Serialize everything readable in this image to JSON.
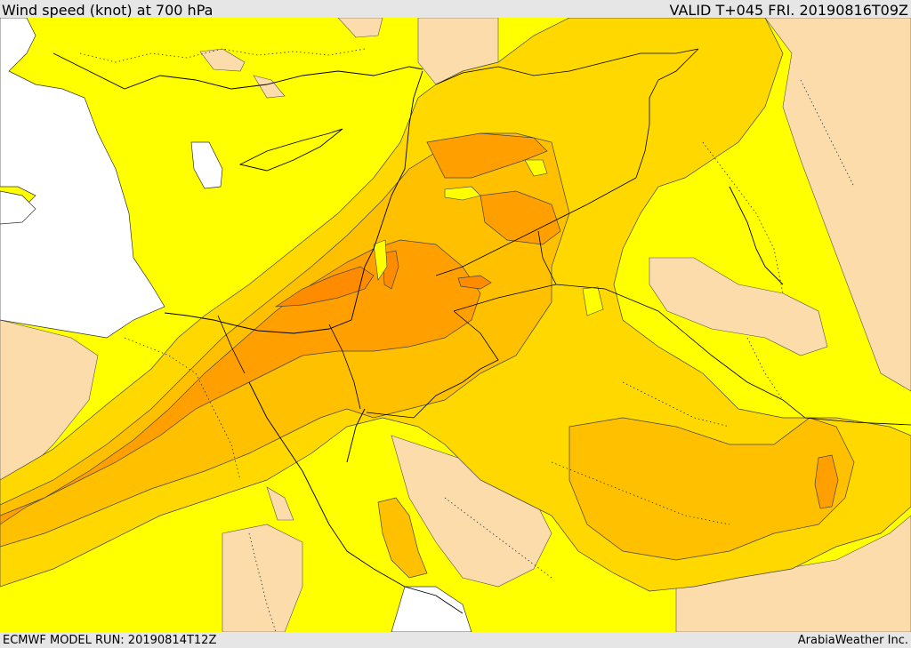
{
  "header": {
    "title": "Wind speed (knot) at 700 hPa",
    "valid": "VALID T+045 FRI. 20190816T09Z"
  },
  "footer": {
    "model_run": "ECMWF MODEL RUN: 20190814T12Z",
    "credit": "ArabiaWeather Inc."
  },
  "colors": {
    "sea": "#ffffff",
    "calm": "#fddcac",
    "band1": "#ffff00",
    "band2": "#ffd800",
    "band3": "#ffc000",
    "band4": "#ffa000",
    "band5": "#ff8c00"
  }
}
